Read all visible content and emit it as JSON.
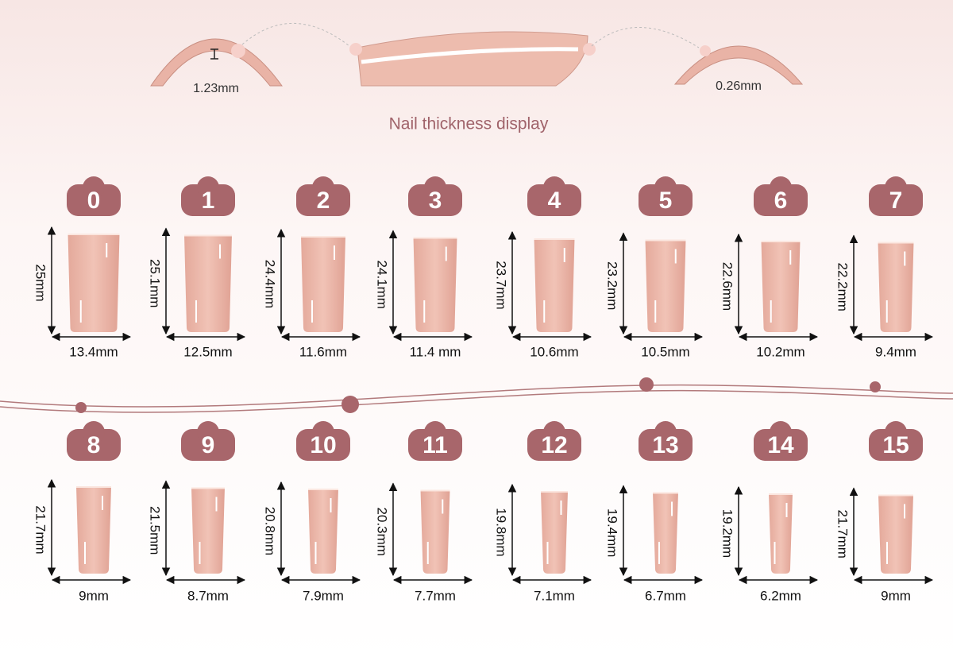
{
  "thickness": {
    "thick": "1.23mm",
    "thin": "0.26mm",
    "caption": "Nail thickness display"
  },
  "sizes": [
    {
      "label": "0",
      "length": "25mm",
      "width": "13.4mm"
    },
    {
      "label": "1",
      "length": "25.1mm",
      "width": "12.5mm"
    },
    {
      "label": "2",
      "length": "24.4mm",
      "width": "11.6mm"
    },
    {
      "label": "3",
      "length": "24.1mm",
      "width": "11.4 mm"
    },
    {
      "label": "4",
      "length": "23.7mm",
      "width": "10.6mm"
    },
    {
      "label": "5",
      "length": "23.2mm",
      "width": "10.5mm"
    },
    {
      "label": "6",
      "length": "22.6mm",
      "width": "10.2mm"
    },
    {
      "label": "7",
      "length": "22.2mm",
      "width": "9.4mm"
    },
    {
      "label": "8",
      "length": "21.7mm",
      "width": "9mm"
    },
    {
      "label": "9",
      "length": "21.5mm",
      "width": "8.7mm"
    },
    {
      "label": "10",
      "length": "20.8mm",
      "width": "7.9mm"
    },
    {
      "label": "11",
      "length": "20.3mm",
      "width": "7.7mm"
    },
    {
      "label": "12",
      "length": "19.8mm",
      "width": "7.1mm"
    },
    {
      "label": "13",
      "length": "19.4mm",
      "width": "6.7mm"
    },
    {
      "label": "14",
      "length": "19.2mm",
      "width": "6.2mm"
    },
    {
      "label": "15",
      "length": "21.7mm",
      "width": "9mm"
    }
  ]
}
